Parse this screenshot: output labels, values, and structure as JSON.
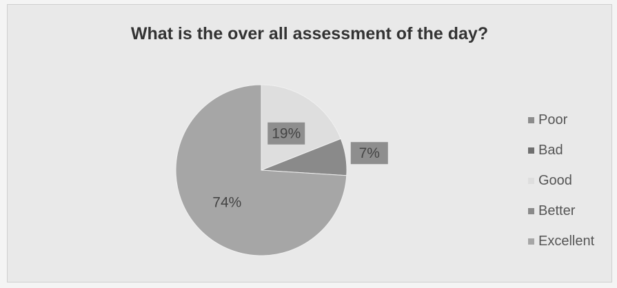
{
  "chart_data": {
    "type": "pie",
    "title": "What is the over all assessment of the day?",
    "categories": [
      "Poor",
      "Bad",
      "Good",
      "Better",
      "Excellent"
    ],
    "values": [
      0,
      0,
      19,
      7,
      74
    ],
    "data_labels": [
      "",
      "",
      "19%",
      "7%",
      "74%"
    ],
    "colors": [
      "#8c8c8c",
      "#6f6f6f",
      "#dedede",
      "#8a8a8a",
      "#a6a6a6"
    ],
    "legend_position": "right"
  }
}
